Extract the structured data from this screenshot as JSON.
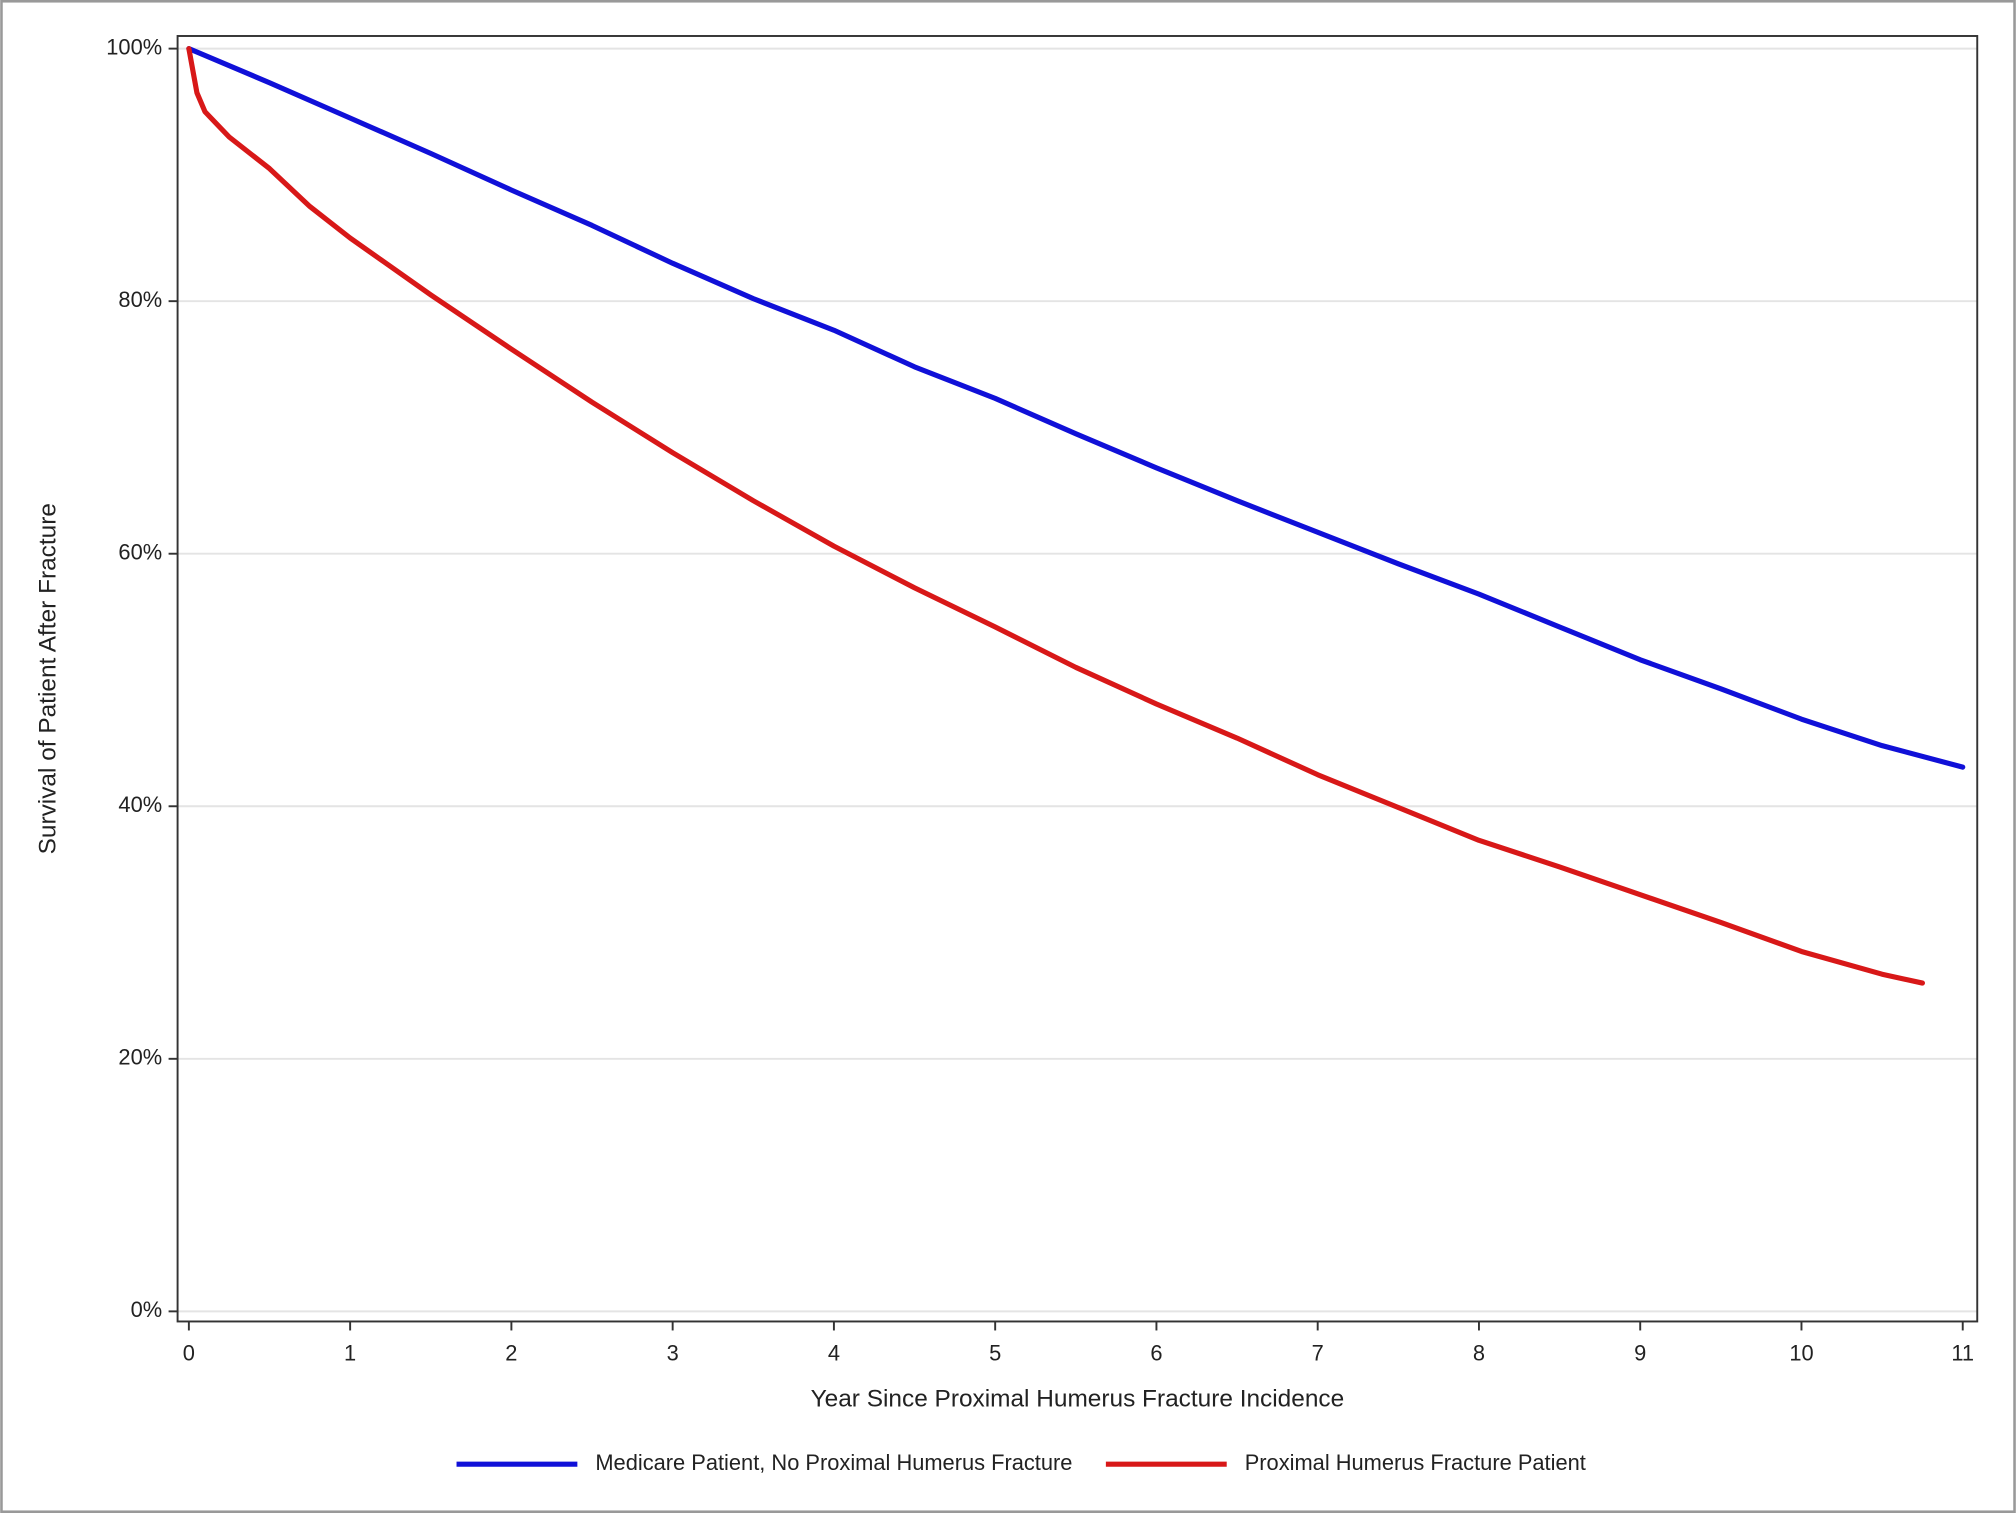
{
  "chart_data": {
    "type": "line",
    "x_label": "Year Since Proximal Humerus Fracture Incidence",
    "y_label": "Survival of Patient After Fracture",
    "xlim": [
      -0.07,
      11.09
    ],
    "ylim": [
      -0.8,
      101
    ],
    "xticks": [
      0,
      1,
      2,
      3,
      4,
      5,
      6,
      7,
      8,
      9,
      10,
      11
    ],
    "yticks": [
      {
        "value": 0,
        "label": "0%"
      },
      {
        "value": 20,
        "label": "20%"
      },
      {
        "value": 40,
        "label": "40%"
      },
      {
        "value": 60,
        "label": "60%"
      },
      {
        "value": 80,
        "label": "80%"
      },
      {
        "value": 100,
        "label": "100%"
      }
    ],
    "grid": true,
    "legend": "bottom",
    "series": [
      {
        "name": "Medicare Patient, No Proximal Humerus Fracture",
        "color": "#1010d8",
        "x": [
          0,
          0.5,
          1,
          1.5,
          2,
          2.5,
          3,
          3.5,
          4,
          4.5,
          5,
          5.5,
          6,
          6.5,
          7,
          7.5,
          8,
          8.5,
          9,
          9.5,
          10,
          10.5,
          11
        ],
        "values": [
          100,
          97.3,
          94.5,
          91.7,
          88.8,
          86.0,
          83.0,
          80.2,
          77.7,
          74.8,
          72.3,
          69.5,
          66.8,
          64.2,
          61.7,
          59.2,
          56.8,
          54.2,
          51.6,
          49.3,
          46.9,
          44.8,
          43.1
        ]
      },
      {
        "name": "Proximal Humerus Fracture Patient",
        "color": "#d81818",
        "x": [
          0,
          0.05,
          0.1,
          0.25,
          0.5,
          0.75,
          1,
          1.5,
          2,
          2.5,
          3,
          3.5,
          4,
          4.5,
          5,
          5.5,
          6,
          6.5,
          7,
          7.5,
          8,
          8.5,
          9,
          9.5,
          10,
          10.5,
          10.75
        ],
        "values": [
          100,
          96.5,
          95,
          93,
          90.5,
          87.5,
          85,
          80.5,
          76.2,
          72,
          68,
          64.2,
          60.6,
          57.3,
          54.2,
          51,
          48.1,
          45.4,
          42.5,
          39.9,
          37.3,
          35.2,
          33.0,
          30.8,
          28.5,
          26.7,
          26.0
        ]
      }
    ]
  }
}
